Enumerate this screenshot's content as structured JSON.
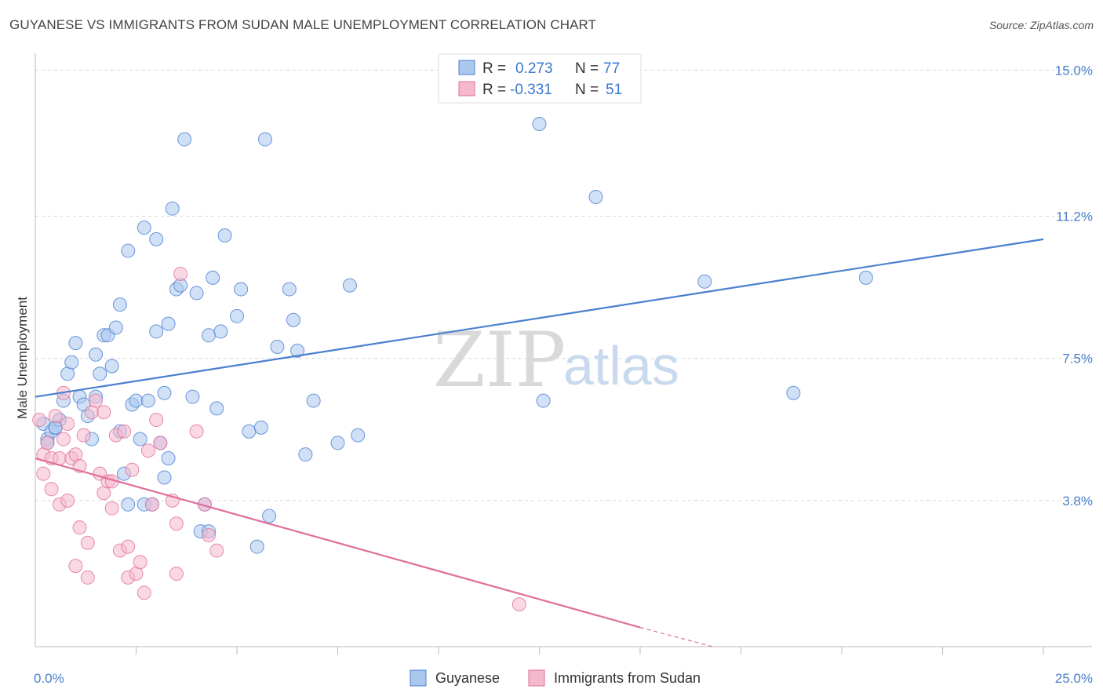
{
  "title": "GUYANESE VS IMMIGRANTS FROM SUDAN MALE UNEMPLOYMENT CORRELATION CHART",
  "source": "Source: ZipAtlas.com",
  "watermark": {
    "zip": "ZIP",
    "atlas": "atlas"
  },
  "colors": {
    "blue": "#4a7fcf",
    "blue_fill": "#aac7ee",
    "pink": "#e0709a",
    "pink_fill": "#f5b8cc",
    "grid": "#d8d8d8"
  },
  "legend": {
    "rows": [
      {
        "r_label": "R =",
        "r_value": "0.273",
        "n_label": "N =",
        "n_value": "77"
      },
      {
        "r_label": "R =",
        "r_value": "-0.331",
        "n_label": "N =",
        "n_value": "51"
      }
    ]
  },
  "bottom_legend": [
    "Guyanese",
    "Immigrants from Sudan"
  ],
  "chart_data": {
    "type": "scatter",
    "ylabel": "Male Unemployment",
    "xlim": [
      0,
      25
    ],
    "ylim": [
      0,
      15.6
    ],
    "y_ticks": [
      {
        "value": 3.8,
        "label": "3.8%"
      },
      {
        "value": 7.5,
        "label": "7.5%"
      },
      {
        "value": 11.2,
        "label": "11.2%"
      },
      {
        "value": 15.0,
        "label": "15.0%"
      }
    ],
    "x_tick_labels": [
      {
        "value": 0,
        "label": "0.0%"
      },
      {
        "value": 25,
        "label": "25.0%"
      }
    ],
    "x_minor_ticks": [
      2.5,
      5,
      7.5,
      10,
      12.5,
      15,
      17.5,
      20,
      22.5,
      25
    ],
    "grid": true,
    "legend_position": "top-center",
    "series": [
      {
        "name": "Guyanese",
        "color": "#4a7fcf",
        "trend": {
          "x": [
            0,
            25
          ],
          "y": [
            6.5,
            10.6
          ]
        },
        "points": [
          [
            0.2,
            5.8
          ],
          [
            0.3,
            5.4
          ],
          [
            0.4,
            5.6
          ],
          [
            0.5,
            5.7
          ],
          [
            0.6,
            5.9
          ],
          [
            0.5,
            5.7
          ],
          [
            0.7,
            6.4
          ],
          [
            0.8,
            7.1
          ],
          [
            0.9,
            7.4
          ],
          [
            1.0,
            7.9
          ],
          [
            1.1,
            6.5
          ],
          [
            1.2,
            6.3
          ],
          [
            1.3,
            6.0
          ],
          [
            1.4,
            5.4
          ],
          [
            1.5,
            7.6
          ],
          [
            1.5,
            6.5
          ],
          [
            1.6,
            7.1
          ],
          [
            1.7,
            8.1
          ],
          [
            1.8,
            8.1
          ],
          [
            1.9,
            7.3
          ],
          [
            2.0,
            8.3
          ],
          [
            2.1,
            5.6
          ],
          [
            2.1,
            8.9
          ],
          [
            2.2,
            4.5
          ],
          [
            2.3,
            10.3
          ],
          [
            2.3,
            3.7
          ],
          [
            2.4,
            6.3
          ],
          [
            2.5,
            6.4
          ],
          [
            2.6,
            5.4
          ],
          [
            2.7,
            10.9
          ],
          [
            2.8,
            6.4
          ],
          [
            2.7,
            3.7
          ],
          [
            2.9,
            3.7
          ],
          [
            3.0,
            8.2
          ],
          [
            3.0,
            10.6
          ],
          [
            3.1,
            5.3
          ],
          [
            3.2,
            6.6
          ],
          [
            3.2,
            4.4
          ],
          [
            3.3,
            8.4
          ],
          [
            3.3,
            4.9
          ],
          [
            3.4,
            11.4
          ],
          [
            3.5,
            9.3
          ],
          [
            3.6,
            9.4
          ],
          [
            3.7,
            13.2
          ],
          [
            3.9,
            6.5
          ],
          [
            4.0,
            9.2
          ],
          [
            4.1,
            3.0
          ],
          [
            4.2,
            3.7
          ],
          [
            4.3,
            8.1
          ],
          [
            4.3,
            3.0
          ],
          [
            4.4,
            9.6
          ],
          [
            4.5,
            6.2
          ],
          [
            4.6,
            8.2
          ],
          [
            4.7,
            10.7
          ],
          [
            5.0,
            8.6
          ],
          [
            5.1,
            9.3
          ],
          [
            5.3,
            5.6
          ],
          [
            5.5,
            2.6
          ],
          [
            5.6,
            5.7
          ],
          [
            5.7,
            13.2
          ],
          [
            5.8,
            3.4
          ],
          [
            6.0,
            7.8
          ],
          [
            6.3,
            9.3
          ],
          [
            6.4,
            8.5
          ],
          [
            6.5,
            7.7
          ],
          [
            6.7,
            5.0
          ],
          [
            6.9,
            6.4
          ],
          [
            7.5,
            5.3
          ],
          [
            7.8,
            9.4
          ],
          [
            8.0,
            5.5
          ],
          [
            12.5,
            13.6
          ],
          [
            12.6,
            6.4
          ],
          [
            13.9,
            11.7
          ],
          [
            16.6,
            9.5
          ],
          [
            18.8,
            6.6
          ],
          [
            20.6,
            9.6
          ],
          [
            0.3,
            5.3
          ]
        ]
      },
      {
        "name": "Immigrants from Sudan",
        "color": "#e0709a",
        "trend": {
          "x": [
            0,
            15
          ],
          "y": [
            4.9,
            0.5
          ]
        },
        "trend_dash": {
          "x": [
            15,
            16.8
          ],
          "y": [
            0.5,
            0.0
          ]
        },
        "points": [
          [
            0.1,
            5.9
          ],
          [
            0.2,
            5.0
          ],
          [
            0.2,
            4.5
          ],
          [
            0.3,
            5.3
          ],
          [
            0.4,
            4.9
          ],
          [
            0.4,
            4.1
          ],
          [
            0.5,
            6.0
          ],
          [
            0.6,
            4.9
          ],
          [
            0.6,
            3.7
          ],
          [
            0.7,
            5.4
          ],
          [
            0.7,
            6.6
          ],
          [
            0.8,
            5.8
          ],
          [
            0.8,
            3.8
          ],
          [
            0.9,
            4.9
          ],
          [
            1.0,
            5.0
          ],
          [
            1.0,
            2.1
          ],
          [
            1.1,
            4.7
          ],
          [
            1.1,
            3.1
          ],
          [
            1.2,
            5.5
          ],
          [
            1.3,
            2.7
          ],
          [
            1.3,
            1.8
          ],
          [
            1.4,
            6.1
          ],
          [
            1.5,
            6.4
          ],
          [
            1.6,
            4.5
          ],
          [
            1.7,
            6.1
          ],
          [
            1.7,
            4.0
          ],
          [
            1.8,
            4.3
          ],
          [
            1.9,
            4.3
          ],
          [
            1.9,
            3.6
          ],
          [
            2.0,
            5.5
          ],
          [
            2.1,
            2.5
          ],
          [
            2.2,
            5.6
          ],
          [
            2.3,
            2.6
          ],
          [
            2.3,
            1.8
          ],
          [
            2.4,
            4.6
          ],
          [
            2.5,
            1.9
          ],
          [
            2.6,
            2.2
          ],
          [
            2.7,
            1.4
          ],
          [
            2.8,
            5.1
          ],
          [
            2.9,
            3.7
          ],
          [
            3.0,
            5.9
          ],
          [
            3.1,
            5.3
          ],
          [
            3.4,
            3.8
          ],
          [
            3.5,
            3.2
          ],
          [
            3.6,
            9.7
          ],
          [
            4.0,
            5.6
          ],
          [
            4.2,
            3.7
          ],
          [
            4.3,
            2.9
          ],
          [
            4.5,
            2.5
          ],
          [
            12.0,
            1.1
          ],
          [
            3.5,
            1.9
          ]
        ]
      }
    ]
  }
}
